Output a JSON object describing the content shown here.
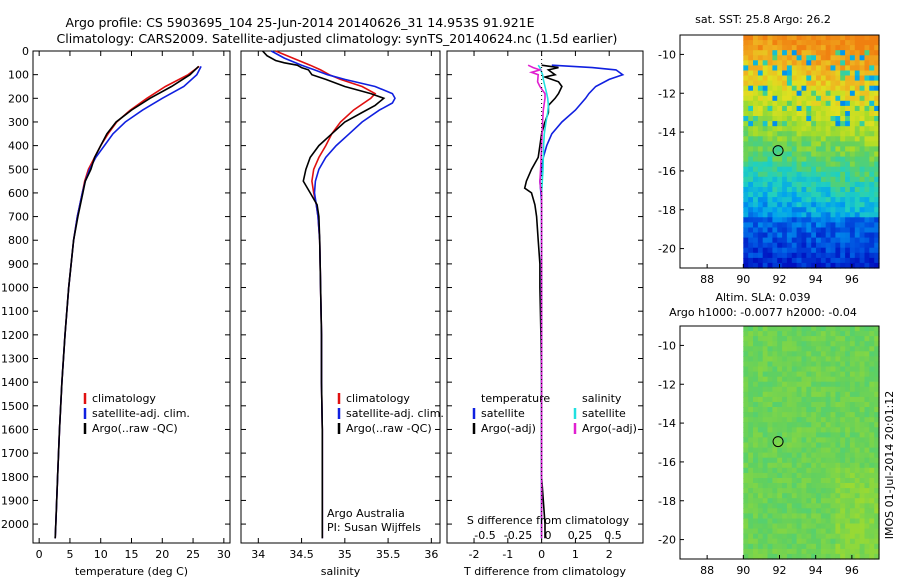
{
  "title": {
    "line1": "Argo profile: CS 5903695_104 25-Jun-2014 20140626_31 14.953S 91.921E",
    "line2": "Climatology: CARS2009. Satellite-adjusted climatology: synTS_20140624.nc (1.5d earlier)"
  },
  "colors": {
    "clim": "#e01010",
    "sat": "#1020e0",
    "argo": "#000000",
    "cyan": "#20e0e0",
    "magenta": "#e020d0"
  },
  "chart_data": [
    {
      "type": "line",
      "name": "temperature-profile",
      "xlabel": "temperature (deg C)",
      "ylabel": "",
      "xlim": [
        -1,
        31
      ],
      "ylim": [
        2080,
        0
      ],
      "xticks": [
        0,
        5,
        10,
        15,
        20,
        25,
        30
      ],
      "yticks": [
        0,
        100,
        200,
        300,
        400,
        500,
        600,
        700,
        800,
        900,
        1000,
        1100,
        1200,
        1300,
        1400,
        1500,
        1600,
        1700,
        1800,
        1900,
        2000
      ],
      "series": [
        {
          "name": "climatology",
          "color": "#e01010",
          "depth": [
            65,
            100,
            150,
            200,
            250,
            300,
            350,
            400,
            450,
            500,
            550,
            600,
            700,
            800,
            1000,
            1200,
            1400,
            1600,
            1800,
            2000,
            2060
          ],
          "values": [
            26,
            24.2,
            20.5,
            17.5,
            14.8,
            12.6,
            11.2,
            10,
            9,
            8,
            7.4,
            7,
            6.2,
            5.6,
            4.8,
            4.2,
            3.7,
            3.3,
            3,
            2.7,
            2.6
          ]
        },
        {
          "name": "satellite-adj. clim.",
          "color": "#1020e0",
          "depth": [
            65,
            100,
            150,
            200,
            250,
            300,
            350,
            400,
            450,
            500,
            550,
            600,
            700,
            800,
            1000,
            1200,
            1400,
            1600,
            1800,
            2000,
            2060
          ],
          "values": [
            26.3,
            25.6,
            23.5,
            20,
            16.8,
            14,
            12,
            10.6,
            9.2,
            8.2,
            7.5,
            7,
            6.2,
            5.6,
            4.8,
            4.2,
            3.7,
            3.3,
            3,
            2.7,
            2.6
          ]
        },
        {
          "name": "Argo(..raw -QC)",
          "color": "#000000",
          "depth": [
            65,
            100,
            150,
            200,
            250,
            300,
            350,
            400,
            450,
            500,
            550,
            600,
            700,
            800,
            1000,
            1200,
            1400,
            1600,
            1800,
            2000,
            2060
          ],
          "values": [
            25.9,
            24.5,
            21.5,
            18,
            15,
            12.5,
            11,
            10,
            9,
            8.4,
            7.5,
            7.1,
            6.3,
            5.6,
            4.8,
            4.2,
            3.7,
            3.3,
            3,
            2.7,
            2.6
          ]
        }
      ],
      "legend": [
        "climatology",
        "satellite-adj. clim.",
        "Argo(..raw -QC)"
      ],
      "legend_position": "lower-middle"
    },
    {
      "type": "line",
      "name": "salinity-profile",
      "xlabel": "salinity",
      "xlim": [
        33.8,
        36.1
      ],
      "ylim": [
        2080,
        0
      ],
      "xticks": [
        34,
        34.5,
        35,
        35.5,
        36
      ],
      "series": [
        {
          "name": "climatology",
          "color": "#e01010",
          "depth": [
            0,
            30,
            60,
            80,
            100,
            120,
            150,
            180,
            200,
            250,
            300,
            350,
            400,
            450,
            500,
            550,
            600,
            650,
            700,
            800,
            1000,
            1200,
            1400,
            1600,
            1800,
            2000,
            2060
          ],
          "values": [
            34.2,
            34.4,
            34.6,
            34.72,
            34.82,
            34.95,
            35.2,
            35.35,
            35.3,
            35.1,
            34.95,
            34.85,
            34.78,
            34.7,
            34.64,
            34.62,
            34.64,
            34.67,
            34.69,
            34.71,
            34.72,
            34.73,
            34.73,
            34.74,
            34.74,
            34.74,
            34.74
          ]
        },
        {
          "name": "satellite-adj. clim.",
          "color": "#1020e0",
          "depth": [
            0,
            30,
            60,
            80,
            100,
            120,
            150,
            180,
            200,
            220,
            250,
            300,
            350,
            400,
            450,
            500,
            550,
            600,
            650,
            700,
            800,
            1000,
            1200,
            1400,
            1600,
            1800,
            2000,
            2060
          ],
          "values": [
            34.15,
            34.3,
            34.5,
            34.65,
            34.8,
            35.0,
            35.35,
            35.55,
            35.58,
            35.55,
            35.4,
            35.2,
            35.05,
            34.9,
            34.78,
            34.7,
            34.66,
            34.65,
            34.67,
            34.69,
            34.71,
            34.72,
            34.73,
            34.73,
            34.74,
            34.74,
            34.74,
            34.74
          ]
        },
        {
          "name": "Argo(..raw -QC)",
          "color": "#000000",
          "depth": [
            0,
            20,
            40,
            50,
            60,
            70,
            80,
            100,
            120,
            150,
            180,
            200,
            230,
            260,
            300,
            350,
            400,
            450,
            500,
            550,
            600,
            650,
            700,
            800,
            1000,
            1200,
            1400,
            1600,
            1800,
            2000,
            2060
          ],
          "values": [
            34.05,
            34.1,
            34.2,
            34.3,
            34.45,
            34.5,
            34.58,
            34.62,
            34.78,
            35.0,
            35.3,
            35.45,
            35.35,
            35.2,
            35.0,
            34.85,
            34.7,
            34.6,
            34.55,
            34.52,
            34.6,
            34.68,
            34.7,
            34.71,
            34.72,
            34.73,
            34.73,
            34.74,
            34.74,
            34.74,
            34.74
          ]
        }
      ],
      "legend": [
        "climatology",
        "satellite-adj. clim.",
        "Argo(..raw -QC)"
      ],
      "annotation": [
        "Argo Australia",
        "PI: Susan Wijffels"
      ]
    },
    {
      "type": "line",
      "name": "difference-profile",
      "xlabel": "T difference from climatology",
      "xlabel_top": "S difference from climatology",
      "xlim": [
        -2.8,
        3.0
      ],
      "ylim": [
        2080,
        0
      ],
      "xticks": [
        -2,
        -1,
        0,
        1,
        2
      ],
      "xticks_s": [
        "-0.5",
        "-0.25",
        "0",
        "0.25",
        "0.5"
      ],
      "series": [
        {
          "name": "temperature satellite",
          "color": "#1020e0",
          "depth": [
            60,
            70,
            80,
            100,
            120,
            150,
            180,
            200,
            250,
            300,
            350,
            400,
            450,
            500,
            550,
            600,
            650,
            700,
            800,
            1000,
            1200,
            1400,
            1600,
            1800,
            2000,
            2060
          ],
          "values": [
            0.3,
            1.5,
            2.2,
            2.4,
            2.0,
            1.6,
            1.4,
            1.3,
            1.0,
            0.6,
            0.3,
            0.15,
            0.05,
            0,
            -0.05,
            -0.02,
            0,
            0,
            0,
            0,
            0,
            0,
            0,
            0,
            0,
            0
          ]
        },
        {
          "name": "temperature Argo(-adj)",
          "color": "#000000",
          "depth": [
            60,
            70,
            80,
            100,
            110,
            130,
            150,
            180,
            200,
            230,
            260,
            300,
            350,
            400,
            450,
            500,
            550,
            580,
            600,
            650,
            700,
            800,
            900,
            1000,
            1200,
            1400,
            1600,
            1800,
            1900,
            2000,
            2060
          ],
          "values": [
            0,
            0.5,
            0.2,
            0.4,
            0.1,
            0.5,
            0.6,
            0.5,
            0.4,
            0.2,
            0.2,
            0.1,
            0.0,
            -0.05,
            -0.1,
            -0.3,
            -0.45,
            -0.5,
            -0.3,
            -0.2,
            -0.15,
            -0.1,
            -0.05,
            -0.05,
            -0.02,
            0,
            0,
            0,
            0.05,
            0.1,
            0.1
          ]
        },
        {
          "name": "salinity satellite",
          "color": "#20e0e0",
          "depth": [
            60,
            70,
            90,
            100,
            120,
            150,
            180,
            200,
            230,
            260,
            300,
            350,
            400,
            500,
            550,
            600,
            700,
            800,
            1000,
            1200,
            1400,
            1600,
            1800,
            2000,
            2060
          ],
          "values": [
            -0.1,
            -0.05,
            0.0,
            0.03,
            0.05,
            0.1,
            0.15,
            0.18,
            0.2,
            0.18,
            0.13,
            0.08,
            0.06,
            0.04,
            0.02,
            0.0,
            0.0,
            0.0,
            0.0,
            0.0,
            0.0,
            0.0,
            0.0,
            0.0,
            0.0
          ]
        },
        {
          "name": "salinity Argo(-adj)",
          "color": "#e020d0",
          "depth": [
            60,
            70,
            80,
            90,
            100,
            130,
            150,
            180,
            200,
            250,
            300,
            400,
            500,
            550,
            580,
            600,
            800,
            1000,
            1200,
            1400,
            1600,
            1800,
            2000,
            2060
          ],
          "values": [
            -0.4,
            -0.25,
            -0.05,
            -0.3,
            -0.1,
            -0.12,
            -0.05,
            0.1,
            0.1,
            0.05,
            0.03,
            0.0,
            -0.03,
            -0.05,
            -0.03,
            0.0,
            0.0,
            0.0,
            0.0,
            0.0,
            0.0,
            0.0,
            0.0,
            0.0
          ]
        }
      ],
      "legend_temperature": {
        "header": "temperature",
        "items": [
          "satellite",
          "Argo(-adj)"
        ]
      },
      "legend_salinity": {
        "header": "salinity",
        "items": [
          "satellite",
          "Argo(-adj)"
        ]
      }
    },
    {
      "type": "heatmap",
      "name": "sst-map",
      "title": "sat. SST: 25.8  Argo: 26.2",
      "xlim": [
        86.5,
        97.5
      ],
      "ylim": [
        -21,
        -9
      ],
      "xticks": [
        88,
        90,
        92,
        94,
        96
      ],
      "yticks": [
        -10,
        -12,
        -14,
        -16,
        -18,
        -20
      ],
      "data_lon_range": [
        90,
        97.5
      ],
      "float_position": {
        "lon": 91.921,
        "lat": -14.953
      }
    },
    {
      "type": "heatmap",
      "name": "sla-map",
      "title": "Altim. SLA: 0.039",
      "subtitle": "Argo h1000: -0.0077 h2000: -0.04",
      "xlim": [
        86.5,
        97.5
      ],
      "ylim": [
        -21,
        -9
      ],
      "xticks": [
        88,
        90,
        92,
        94,
        96
      ],
      "yticks": [
        -10,
        -12,
        -14,
        -16,
        -18,
        -20
      ],
      "data_lon_range": [
        90,
        97.5
      ],
      "float_position": {
        "lon": 91.921,
        "lat": -14.953
      }
    }
  ],
  "footer_stamp": "IMOS 01-Jul-2014 20:01:12"
}
